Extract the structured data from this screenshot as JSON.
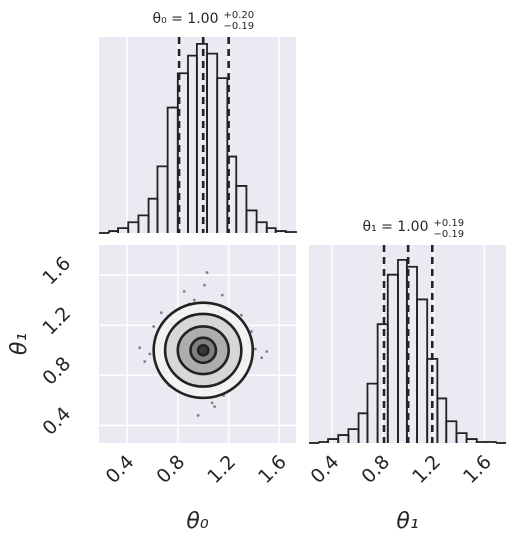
{
  "chart_data": [
    {
      "type": "histogram",
      "title": "θ₀ = 1.00",
      "title_upper": "+0.20",
      "title_lower": "−0.19",
      "bins": [
        0.18,
        0.26,
        0.33,
        0.41,
        0.49,
        0.57,
        0.64,
        0.72,
        0.8,
        0.88,
        0.95,
        1.03,
        1.11,
        1.19,
        1.26,
        1.34,
        1.42,
        1.5,
        1.57,
        1.65,
        1.73
      ],
      "values": [
        0,
        2,
        5,
        11,
        18,
        35,
        68,
        128,
        163,
        181,
        193,
        183,
        158,
        78,
        48,
        23,
        11,
        5,
        2,
        1
      ],
      "xlim": [
        0.18,
        1.73
      ],
      "ylim": [
        0,
        200
      ],
      "xticks": [
        0.4,
        0.8,
        1.2,
        1.6
      ],
      "quantiles": [
        0.81,
        1.0,
        1.2
      ],
      "color": "#222222",
      "grid": true
    },
    {
      "type": "scatter",
      "xlabel": "θ₀",
      "ylabel": "θ₁",
      "xlim": [
        0.18,
        1.73
      ],
      "ylim": [
        0.26,
        1.84
      ],
      "xticks": [
        0.4,
        0.8,
        1.2,
        1.6
      ],
      "yticks": [
        0.4,
        0.8,
        1.2,
        1.6
      ],
      "x": [
        0.72,
        1.05,
        0.95,
        1.21,
        0.88,
        1.12,
        0.64,
        1.33,
        0.99,
        0.81,
        1.18,
        0.93,
        1.41,
        0.58,
        1.02,
        0.86,
        1.27,
        1.09,
        0.75,
        0.97,
        1.15,
        0.69,
        1.36,
        0.91,
        1.04,
        0.83,
        1.24,
        0.61,
        1.46,
        1.01,
        0.78,
        1.13,
        0.94,
        1.3,
        0.54,
        1.07,
        0.89,
        1.19,
        0.73,
        1.38,
        0.96,
        1.1,
        0.67,
        1.25,
        0.85,
        1.5,
        0.5,
        1.03,
        0.92,
        1.16
      ],
      "y": [
        0.95,
        0.71,
        1.23,
        1.04,
        0.86,
        1.31,
        1.08,
        0.92,
        0.62,
        1.17,
        0.79,
        1.4,
        1.01,
        0.97,
        1.26,
        0.74,
        1.12,
        0.55,
        1.21,
        0.89,
        1.44,
        0.83,
        1.06,
        0.66,
        1.35,
        1.0,
        0.77,
        1.19,
        0.94,
        1.52,
        1.13,
        0.68,
        1.09,
        1.28,
        0.91,
        0.58,
        1.37,
        0.85,
        0.72,
        1.15,
        0.48,
        1.05,
        1.3,
        0.81,
        1.47,
        0.99,
        1.02,
        1.62,
        0.88,
        0.64
      ],
      "center": [
        1.0,
        1.0
      ],
      "contours": [
        {
          "rx": 0.39,
          "ry": 0.38
        },
        {
          "rx": 0.3,
          "ry": 0.29
        },
        {
          "rx": 0.2,
          "ry": 0.19
        },
        {
          "rx": 0.1,
          "ry": 0.1
        },
        {
          "rx": 0.04,
          "ry": 0.04
        }
      ],
      "color": "#222222",
      "point_color": "#555555",
      "grid": true
    },
    {
      "type": "histogram",
      "title": "θ₁ = 1.00",
      "title_upper": "+0.19",
      "title_lower": "−0.19",
      "bins": [
        0.22,
        0.3,
        0.37,
        0.45,
        0.53,
        0.61,
        0.68,
        0.76,
        0.84,
        0.92,
        0.99,
        1.07,
        1.15,
        1.23,
        1.3,
        1.38,
        1.46,
        1.54,
        1.61,
        1.69,
        1.77
      ],
      "values": [
        0,
        1,
        4,
        8,
        14,
        30,
        60,
        120,
        170,
        185,
        178,
        145,
        85,
        45,
        22,
        10,
        4,
        1,
        1,
        0
      ],
      "xlim": [
        0.22,
        1.77
      ],
      "ylim": [
        0,
        200
      ],
      "xticks": [
        0.4,
        0.8,
        1.2,
        1.6
      ],
      "xlabel": "θ₁",
      "quantiles": [
        0.81,
        1.0,
        1.19
      ],
      "color": "#222222",
      "grid": true
    }
  ]
}
